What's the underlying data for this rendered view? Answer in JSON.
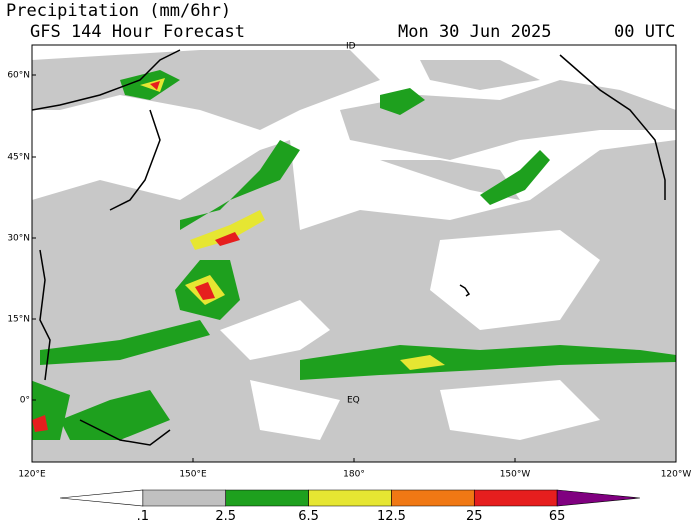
{
  "header": {
    "title": "Precipitation (mm/6hr)",
    "forecast": "GFS 144 Hour Forecast",
    "date": "Mon 30 Jun 2025",
    "time": "00 UTC"
  },
  "map": {
    "lat_labels": [
      "60°N",
      "45°N",
      "30°N",
      "15°N",
      "0°"
    ],
    "lon_labels": [
      "120°E",
      "150°E",
      "180°",
      "150°W",
      "120°W"
    ],
    "place_labels": [
      "ID",
      "EQ"
    ]
  },
  "colorbar": {
    "labels": [
      ".1",
      "2.5",
      "6.5",
      "12.5",
      "25",
      "65"
    ],
    "colors": [
      "#ffffff",
      "#c0c0c0",
      "#1ea01e",
      "#e6e632",
      "#f07814",
      "#e61e1e",
      "#800080"
    ]
  }
}
